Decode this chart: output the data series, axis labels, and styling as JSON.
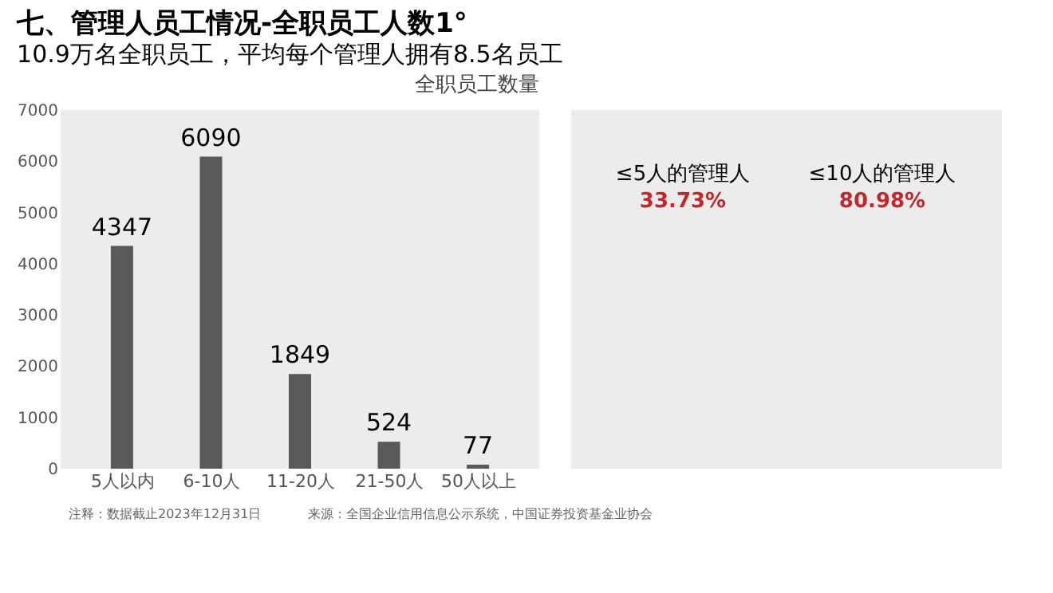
{
  "chart_data": {
    "type": "bar",
    "title": "七、管理人员工情况-全职员工人数1°",
    "subtitle": "10.9万名全职员工，平均每个管理人拥有8.5名员工",
    "categories": [
      "5人以内",
      "6-10人",
      "11-20人",
      "21-50人",
      "50人以上"
    ],
    "values": [
      4347,
      6090,
      1849,
      524,
      77
    ],
    "color": "#595959",
    "ylim": [
      0,
      7000
    ],
    "yticks": [
      0,
      1000,
      2000,
      3000,
      4000,
      5000,
      6000,
      7000
    ],
    "grid": false,
    "data_labels": true,
    "annotations": [
      "全职员工数量",
      "≤5人的管理人",
      "33.73%",
      "≤10人的管理人",
      "80.98%",
      "注释：数据截止2023年12月31日",
      "来源：全国企业信用信息公示系统，中国证券投资基金业协会"
    ]
  }
}
